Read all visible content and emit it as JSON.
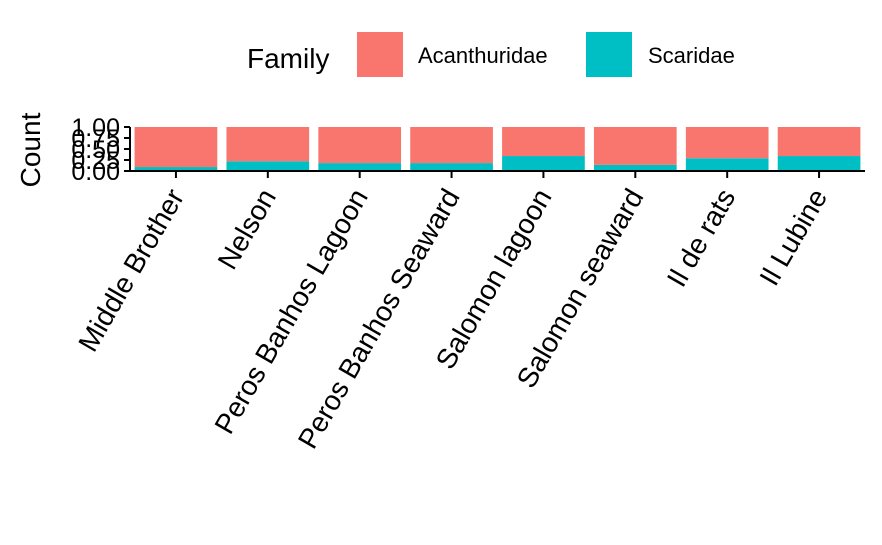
{
  "chart_data": {
    "type": "bar",
    "stacked": true,
    "normalized": true,
    "categories": [
      "Middle Brother",
      "Nelson",
      "Peros Banhos Lagoon",
      "Peros Banhos Seaward",
      "Salomon lagoon",
      "Salomon seaward",
      "Il de rats",
      "Il Lubine"
    ],
    "series": [
      {
        "name": "Acanthuridae",
        "color": "#F8766D",
        "values": [
          0.91,
          0.78,
          0.82,
          0.82,
          0.66,
          0.86,
          0.71,
          0.66
        ]
      },
      {
        "name": "Scaridae",
        "color": "#00BFC4",
        "values": [
          0.09,
          0.22,
          0.18,
          0.18,
          0.34,
          0.14,
          0.29,
          0.34
        ]
      }
    ],
    "xlabel": "",
    "ylabel": "Count",
    "ylim": [
      0,
      1
    ],
    "yticks": [
      "0.00",
      "0.25",
      "0.50",
      "0.75",
      "1.00"
    ],
    "legend": {
      "title": "Family",
      "position": "top"
    },
    "grid": false
  }
}
